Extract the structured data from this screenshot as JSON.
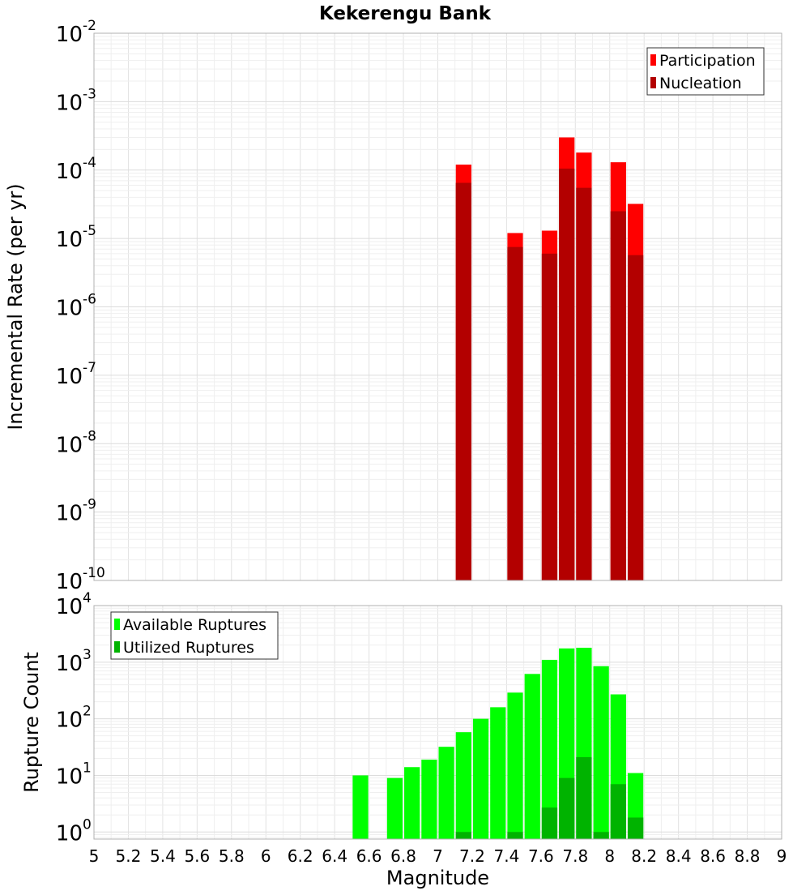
{
  "chart_data": [
    {
      "type": "bar",
      "title": "Kekerengu Bank",
      "ylabel": "Incremental Rate (per yr)",
      "xlabel": "",
      "yscale": "log",
      "ylim": [
        1e-10,
        0.01
      ],
      "xlim": [
        5,
        9
      ],
      "grid": true,
      "legend_position": "top-right",
      "ytick_labels": [
        {
          "base": "10",
          "exp": "-10"
        },
        {
          "base": "10",
          "exp": "-9"
        },
        {
          "base": "10",
          "exp": "-8"
        },
        {
          "base": "10",
          "exp": "-7"
        },
        {
          "base": "10",
          "exp": "-6"
        },
        {
          "base": "10",
          "exp": "-5"
        },
        {
          "base": "10",
          "exp": "-4"
        },
        {
          "base": "10",
          "exp": "-3"
        },
        {
          "base": "10",
          "exp": "-2"
        }
      ],
      "x": [
        7.15,
        7.45,
        7.65,
        7.75,
        7.85,
        8.05,
        8.15
      ],
      "series": [
        {
          "name": "Participation",
          "color": "#ff0000",
          "values": [
            0.00012,
            1.2e-05,
            1.3e-05,
            0.0003,
            0.00018,
            0.00013,
            3.2e-05
          ]
        },
        {
          "name": "Nucleation",
          "color": "#b30000",
          "values": [
            6.5e-05,
            7.5e-06,
            6e-06,
            0.000105,
            5.5e-05,
            2.5e-05,
            5.7e-06
          ]
        }
      ]
    },
    {
      "type": "bar",
      "title": "",
      "ylabel": "Rupture Count",
      "xlabel": "Magnitude",
      "yscale": "log",
      "ylim": [
        0.75,
        10000.0
      ],
      "xlim": [
        5,
        9
      ],
      "grid": true,
      "legend_position": "top-left",
      "ytick_labels": [
        {
          "base": "10",
          "exp": "0"
        },
        {
          "base": "10",
          "exp": "1"
        },
        {
          "base": "10",
          "exp": "2"
        },
        {
          "base": "10",
          "exp": "3"
        },
        {
          "base": "10",
          "exp": "4"
        }
      ],
      "xtick_labels": [
        "5",
        "5.2",
        "5.4",
        "5.6",
        "5.8",
        "6",
        "6.2",
        "6.4",
        "6.6",
        "6.8",
        "7",
        "7.2",
        "7.4",
        "7.6",
        "7.8",
        "8",
        "8.2",
        "8.4",
        "8.6",
        "8.8",
        "9"
      ],
      "x": [
        6.55,
        6.75,
        6.85,
        6.95,
        7.05,
        7.15,
        7.25,
        7.35,
        7.45,
        7.55,
        7.65,
        7.75,
        7.85,
        7.95,
        8.05,
        8.15
      ],
      "series": [
        {
          "name": "Available Ruptures",
          "color": "#00ff00",
          "values": [
            10,
            9,
            14,
            19,
            32,
            58,
            100,
            160,
            290,
            620,
            1100,
            1750,
            1800,
            850,
            270,
            11
          ]
        },
        {
          "name": "Utilized Ruptures",
          "color": "#00b300",
          "values": [
            null,
            null,
            null,
            null,
            null,
            1,
            null,
            null,
            1,
            null,
            2.7,
            9,
            21,
            1,
            7,
            1.8
          ]
        }
      ]
    }
  ]
}
